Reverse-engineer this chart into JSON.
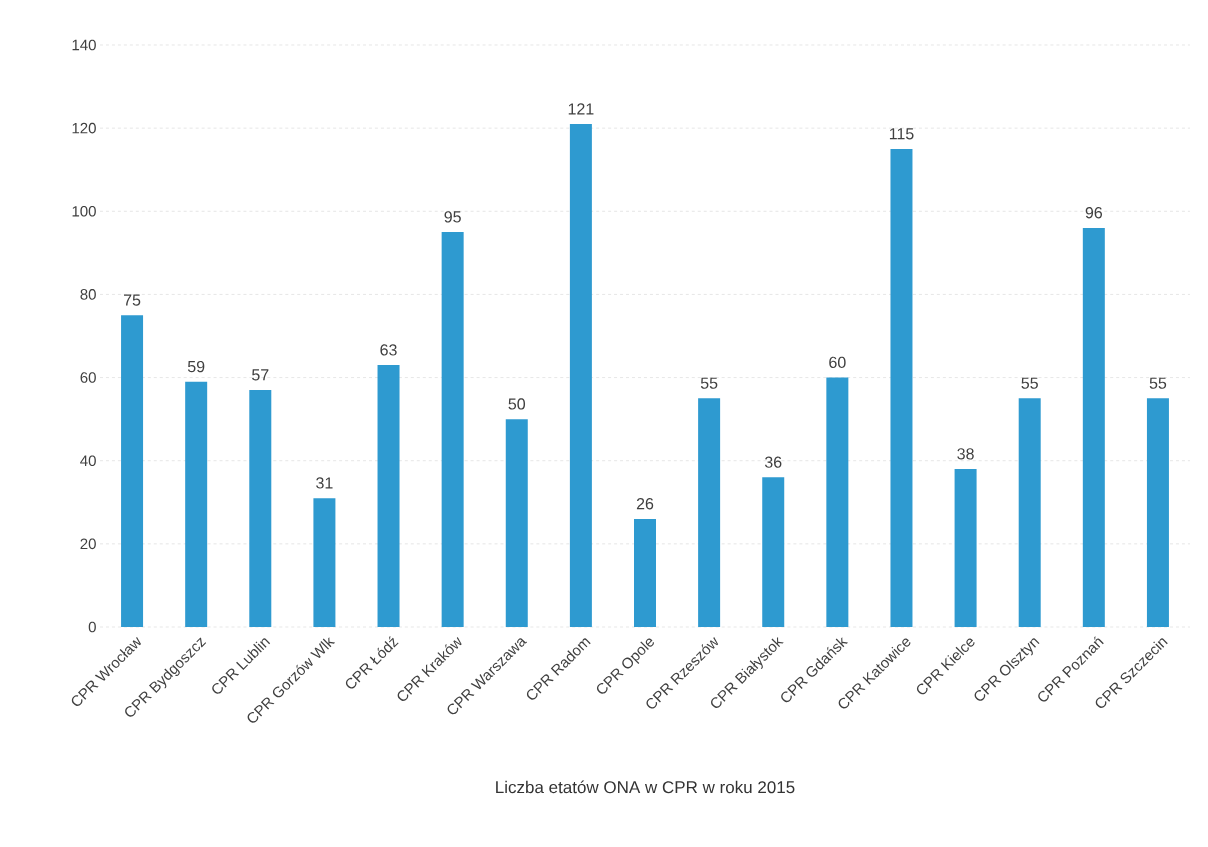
{
  "chart_data": {
    "type": "bar",
    "xlabel": "Liczba etatów ONA w CPR w roku 2015",
    "categories": [
      "CPR Wrocław",
      "CPR Bydgoszcz",
      "CPR Lublin",
      "CPR Gorzów Wlk",
      "CPR Łódź",
      "CPR Kraków",
      "CPR Warszawa",
      "CPR Radom",
      "CPR Opole",
      "CPR Rzeszów",
      "CPR Białystok",
      "CPR Gdańsk",
      "CPR Katowice",
      "CPR Kielce",
      "CPR Olsztyn",
      "CPR Poznań",
      "CPR Szczecin"
    ],
    "values": [
      75,
      59,
      57,
      31,
      63,
      95,
      50,
      121,
      26,
      55,
      36,
      60,
      115,
      38,
      55,
      96,
      55
    ],
    "color": "#2e9ad0",
    "ylim": [
      0,
      140
    ],
    "yticks": [
      0,
      20,
      40,
      60,
      80,
      100,
      120,
      140
    ],
    "grid": "y",
    "data_labels": true
  }
}
